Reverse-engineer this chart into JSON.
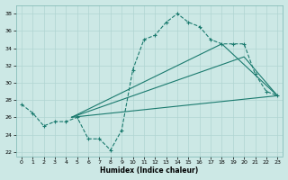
{
  "xlabel": "Humidex (Indice chaleur)",
  "xlim": [
    -0.5,
    23.5
  ],
  "ylim": [
    21.5,
    39
  ],
  "yticks": [
    22,
    24,
    26,
    28,
    30,
    32,
    34,
    36,
    38
  ],
  "xticks": [
    0,
    1,
    2,
    3,
    4,
    5,
    6,
    7,
    8,
    9,
    10,
    11,
    12,
    13,
    14,
    15,
    16,
    17,
    18,
    19,
    20,
    21,
    22,
    23
  ],
  "line_color": "#1a7a6e",
  "bg_color": "#cce8e5",
  "grid_color": "#b0d5d2",
  "line1_x": [
    0,
    1,
    2,
    3,
    4,
    5,
    6,
    7,
    8,
    9,
    10,
    11,
    12,
    13,
    14,
    15,
    16,
    17,
    18,
    19,
    20,
    21,
    22,
    23
  ],
  "line1_y": [
    27.5,
    26.5,
    25,
    25.5,
    25.5,
    26,
    23.5,
    23.5,
    22.2,
    24.5,
    31.5,
    35,
    35.5,
    37,
    38,
    37,
    36.5,
    35,
    34.5,
    34.5,
    34.5,
    31,
    29,
    28.5
  ],
  "line2_x": [
    4.5,
    23
  ],
  "line2_y": [
    26,
    28.5
  ],
  "line3_x": [
    4.5,
    20,
    23
  ],
  "line3_y": [
    26,
    33,
    28.5
  ],
  "line4_x": [
    4.5,
    18,
    23
  ],
  "line4_y": [
    26,
    34.5,
    28.5
  ]
}
